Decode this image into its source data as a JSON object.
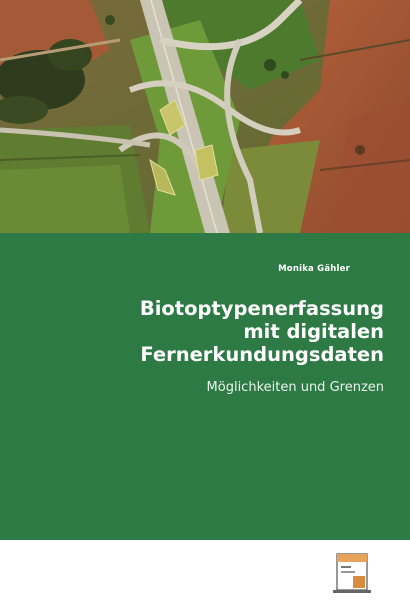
{
  "book": {
    "author": "Monika Gähler",
    "title_lines": [
      "Biotoptypenerfassung",
      "mit digitalen",
      "Fernerkundungsdaten"
    ],
    "subtitle": "Möglichkeiten und Grenzen"
  },
  "colors": {
    "panel_green": "#2d7a45",
    "text": "#ffffff",
    "publisher_orange": "#e8a25a"
  },
  "cover_photo": {
    "subject": "aerial-view-motorway-interchange"
  },
  "publisher_logo": {
    "icon": "publisher-logo-icon"
  }
}
